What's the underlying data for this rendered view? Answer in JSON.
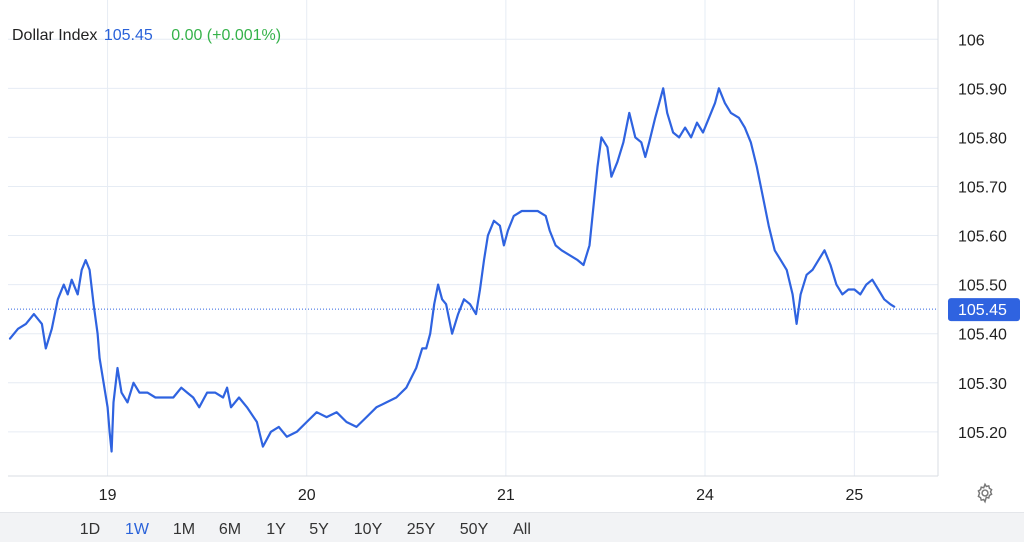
{
  "legend": {
    "name": "Dollar Index",
    "last": "105.45",
    "change": "0.00 (+0.001%)"
  },
  "colors": {
    "line": "#2f63e0",
    "grid": "#e6ecf4",
    "axis_text": "#222222",
    "last_badge": "#2f63e0",
    "change_positive": "#35b24a"
  },
  "range_buttons": [
    "1D",
    "1W",
    "1M",
    "6M",
    "1Y",
    "5Y",
    "10Y",
    "25Y",
    "50Y",
    "All"
  ],
  "active_range": "1W",
  "settings_icon": "gear-icon",
  "chart_data": {
    "type": "line",
    "title": "Dollar Index",
    "xlabel": "",
    "ylabel": "",
    "ylim": [
      105.11,
      106.08
    ],
    "xlim": [
      0,
      4.67
    ],
    "x_ticks": [
      {
        "value": 0.5,
        "label": "19"
      },
      {
        "value": 1.5,
        "label": "20"
      },
      {
        "value": 2.5,
        "label": "21"
      },
      {
        "value": 3.5,
        "label": "24"
      },
      {
        "value": 4.25,
        "label": "25"
      }
    ],
    "y_ticks": [
      {
        "value": 106,
        "label": "106"
      },
      {
        "value": 105.9,
        "label": "105.90"
      },
      {
        "value": 105.8,
        "label": "105.80"
      },
      {
        "value": 105.7,
        "label": "105.70"
      },
      {
        "value": 105.6,
        "label": "105.60"
      },
      {
        "value": 105.5,
        "label": "105.50"
      },
      {
        "value": 105.4,
        "label": "105.40"
      },
      {
        "value": 105.3,
        "label": "105.30"
      },
      {
        "value": 105.2,
        "label": "105.20"
      }
    ],
    "grid": true,
    "last_value": 105.45,
    "last_value_label": "105.45",
    "series": [
      {
        "values": [
          [
            0.01,
            105.39
          ],
          [
            0.05,
            105.41
          ],
          [
            0.09,
            105.42
          ],
          [
            0.13,
            105.44
          ],
          [
            0.17,
            105.42
          ],
          [
            0.19,
            105.37
          ],
          [
            0.22,
            105.41
          ],
          [
            0.25,
            105.47
          ],
          [
            0.28,
            105.5
          ],
          [
            0.3,
            105.48
          ],
          [
            0.32,
            105.51
          ],
          [
            0.35,
            105.48
          ],
          [
            0.37,
            105.53
          ],
          [
            0.39,
            105.55
          ],
          [
            0.41,
            105.53
          ],
          [
            0.43,
            105.46
          ],
          [
            0.45,
            105.4
          ],
          [
            0.46,
            105.35
          ],
          [
            0.48,
            105.3
          ],
          [
            0.5,
            105.25
          ],
          [
            0.51,
            105.2
          ],
          [
            0.52,
            105.16
          ],
          [
            0.53,
            105.26
          ],
          [
            0.55,
            105.33
          ],
          [
            0.57,
            105.28
          ],
          [
            0.6,
            105.26
          ],
          [
            0.63,
            105.3
          ],
          [
            0.66,
            105.28
          ],
          [
            0.7,
            105.28
          ],
          [
            0.74,
            105.27
          ],
          [
            0.78,
            105.27
          ],
          [
            0.83,
            105.27
          ],
          [
            0.87,
            105.29
          ],
          [
            0.9,
            105.28
          ],
          [
            0.93,
            105.27
          ],
          [
            0.96,
            105.25
          ],
          [
            1.0,
            105.28
          ],
          [
            1.04,
            105.28
          ],
          [
            1.08,
            105.27
          ],
          [
            1.1,
            105.29
          ],
          [
            1.12,
            105.25
          ],
          [
            1.16,
            105.27
          ],
          [
            1.2,
            105.25
          ],
          [
            1.25,
            105.22
          ],
          [
            1.28,
            105.17
          ],
          [
            1.32,
            105.2
          ],
          [
            1.36,
            105.21
          ],
          [
            1.4,
            105.19
          ],
          [
            1.45,
            105.2
          ],
          [
            1.5,
            105.22
          ],
          [
            1.55,
            105.24
          ],
          [
            1.6,
            105.23
          ],
          [
            1.65,
            105.24
          ],
          [
            1.7,
            105.22
          ],
          [
            1.75,
            105.21
          ],
          [
            1.8,
            105.23
          ],
          [
            1.85,
            105.25
          ],
          [
            1.9,
            105.26
          ],
          [
            1.95,
            105.27
          ],
          [
            2.0,
            105.29
          ],
          [
            2.05,
            105.33
          ],
          [
            2.08,
            105.37
          ],
          [
            2.1,
            105.37
          ],
          [
            2.12,
            105.4
          ],
          [
            2.14,
            105.46
          ],
          [
            2.16,
            105.5
          ],
          [
            2.18,
            105.47
          ],
          [
            2.2,
            105.46
          ],
          [
            2.23,
            105.4
          ],
          [
            2.26,
            105.44
          ],
          [
            2.29,
            105.47
          ],
          [
            2.32,
            105.46
          ],
          [
            2.35,
            105.44
          ],
          [
            2.37,
            105.49
          ],
          [
            2.39,
            105.55
          ],
          [
            2.41,
            105.6
          ],
          [
            2.44,
            105.63
          ],
          [
            2.47,
            105.62
          ],
          [
            2.49,
            105.58
          ],
          [
            2.51,
            105.61
          ],
          [
            2.54,
            105.64
          ],
          [
            2.58,
            105.65
          ],
          [
            2.62,
            105.65
          ],
          [
            2.66,
            105.65
          ],
          [
            2.7,
            105.64
          ],
          [
            2.72,
            105.61
          ],
          [
            2.75,
            105.58
          ],
          [
            2.78,
            105.57
          ],
          [
            2.82,
            105.56
          ],
          [
            2.86,
            105.55
          ],
          [
            2.89,
            105.54
          ],
          [
            2.92,
            105.58
          ],
          [
            2.94,
            105.66
          ],
          [
            2.96,
            105.74
          ],
          [
            2.98,
            105.8
          ],
          [
            3.01,
            105.78
          ],
          [
            3.03,
            105.72
          ],
          [
            3.06,
            105.75
          ],
          [
            3.09,
            105.79
          ],
          [
            3.12,
            105.85
          ],
          [
            3.15,
            105.8
          ],
          [
            3.18,
            105.79
          ],
          [
            3.2,
            105.76
          ],
          [
            3.22,
            105.79
          ],
          [
            3.25,
            105.84
          ],
          [
            3.27,
            105.87
          ],
          [
            3.29,
            105.9
          ],
          [
            3.31,
            105.85
          ],
          [
            3.34,
            105.81
          ],
          [
            3.37,
            105.8
          ],
          [
            3.4,
            105.82
          ],
          [
            3.43,
            105.8
          ],
          [
            3.46,
            105.83
          ],
          [
            3.49,
            105.81
          ],
          [
            3.52,
            105.84
          ],
          [
            3.55,
            105.87
          ],
          [
            3.57,
            105.9
          ],
          [
            3.6,
            105.87
          ],
          [
            3.63,
            105.85
          ],
          [
            3.67,
            105.84
          ],
          [
            3.7,
            105.82
          ],
          [
            3.73,
            105.79
          ],
          [
            3.76,
            105.74
          ],
          [
            3.79,
            105.68
          ],
          [
            3.82,
            105.62
          ],
          [
            3.85,
            105.57
          ],
          [
            3.88,
            105.55
          ],
          [
            3.91,
            105.53
          ],
          [
            3.94,
            105.48
          ],
          [
            3.96,
            105.42
          ],
          [
            3.98,
            105.48
          ],
          [
            4.01,
            105.52
          ],
          [
            4.04,
            105.53
          ],
          [
            4.07,
            105.55
          ],
          [
            4.1,
            105.57
          ],
          [
            4.13,
            105.54
          ],
          [
            4.16,
            105.5
          ],
          [
            4.19,
            105.48
          ],
          [
            4.22,
            105.49
          ],
          [
            4.25,
            105.49
          ],
          [
            4.28,
            105.48
          ],
          [
            4.31,
            105.5
          ],
          [
            4.34,
            105.51
          ],
          [
            4.37,
            105.49
          ],
          [
            4.4,
            105.47
          ],
          [
            4.43,
            105.46
          ],
          [
            4.45,
            105.455
          ]
        ]
      }
    ]
  }
}
